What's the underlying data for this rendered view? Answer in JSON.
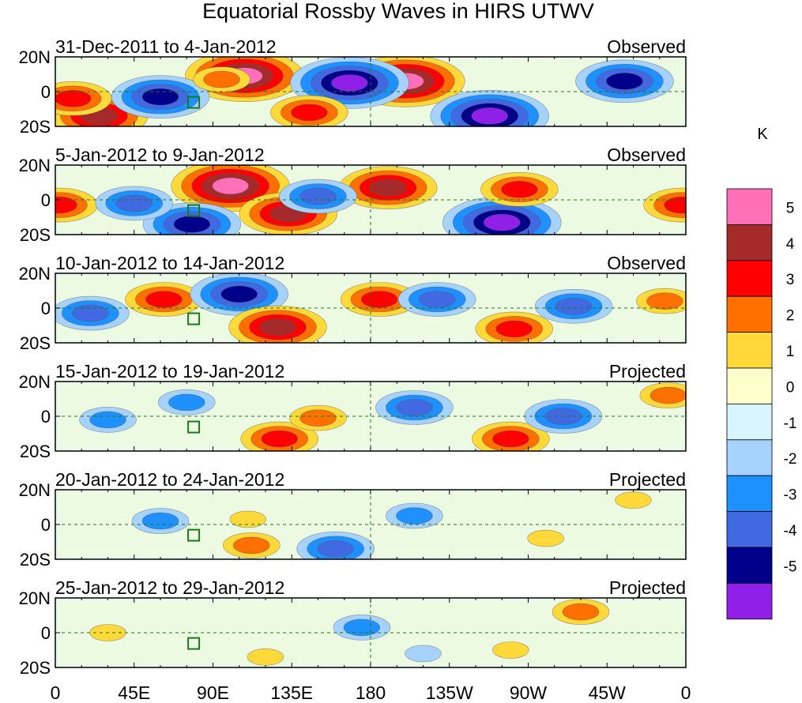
{
  "chart_data": {
    "type": "heatmap",
    "title": "Equatorial Rossby Waves in HIRS UTWV",
    "unit_label": "K",
    "x_ticks": [
      "0",
      "45E",
      "90E",
      "135E",
      "180",
      "135W",
      "90W",
      "45W",
      "0"
    ],
    "x_tick_lons": [
      0,
      45,
      90,
      135,
      180,
      225,
      270,
      315,
      360
    ],
    "lon_range": [
      0,
      360
    ],
    "lat_range": [
      -20,
      20
    ],
    "y_ticks": [
      "20N",
      "0",
      "20S"
    ],
    "y_tick_lats": [
      20,
      0,
      -20
    ],
    "reference_lines": {
      "equator_lat": 0,
      "dateline_lon": 180
    },
    "colorbar": {
      "labels": [
        "5",
        "4",
        "3",
        "2",
        "1",
        "0",
        "-1",
        "-2",
        "-3",
        "-4",
        "-5"
      ],
      "levels": [
        5,
        4,
        3,
        2,
        1,
        0,
        -1,
        -2,
        -3,
        -4,
        -5
      ],
      "colors": [
        "#ff70b8",
        "#a52a2a",
        "#ff0000",
        "#ff7000",
        "#ffd83a",
        "#ffffcc",
        "#d8f4ff",
        "#a6d2ff",
        "#1e90ff",
        "#4169e1",
        "#00008b",
        "#9020e8"
      ]
    },
    "panels": [
      {
        "date_label": "31-Dec-2011 to 4-Jan-2012",
        "status": "Observed",
        "features": [
          {
            "lon": 108,
            "lat": 9,
            "value": 5
          },
          {
            "lon": 200,
            "lat": 6,
            "value": 5
          },
          {
            "lon": 25,
            "lat": -14,
            "value": 4
          },
          {
            "lon": 168,
            "lat": 5,
            "value": -5
          },
          {
            "lon": 248,
            "lat": -14,
            "value": -5
          },
          {
            "lon": 60,
            "lat": -3,
            "value": -4
          },
          {
            "lon": 325,
            "lat": 6,
            "value": -4
          },
          {
            "lon": 145,
            "lat": -12,
            "value": 3
          },
          {
            "lon": 95,
            "lat": 7,
            "value": 2
          },
          {
            "lon": 10,
            "lat": -4,
            "value": 3
          }
        ]
      },
      {
        "date_label": "5-Jan-2012 to 9-Jan-2012",
        "status": "Observed",
        "features": [
          {
            "lon": 100,
            "lat": 8,
            "value": 5
          },
          {
            "lon": 190,
            "lat": 7,
            "value": 4
          },
          {
            "lon": 133,
            "lat": -8,
            "value": 4
          },
          {
            "lon": 2,
            "lat": -3,
            "value": 3
          },
          {
            "lon": 358,
            "lat": -3,
            "value": 3
          },
          {
            "lon": 255,
            "lat": -13,
            "value": -5
          },
          {
            "lon": 78,
            "lat": -14,
            "value": -4
          },
          {
            "lon": 45,
            "lat": -2,
            "value": -3
          },
          {
            "lon": 265,
            "lat": 6,
            "value": 3
          },
          {
            "lon": 150,
            "lat": 2,
            "value": -3
          }
        ]
      },
      {
        "date_label": "10-Jan-2012 to 14-Jan-2012",
        "status": "Observed",
        "features": [
          {
            "lon": 62,
            "lat": 5,
            "value": 3
          },
          {
            "lon": 105,
            "lat": 8,
            "value": -4
          },
          {
            "lon": 127,
            "lat": -11,
            "value": 4
          },
          {
            "lon": 185,
            "lat": 5,
            "value": 3
          },
          {
            "lon": 262,
            "lat": -12,
            "value": 3
          },
          {
            "lon": 218,
            "lat": 5,
            "value": -3
          },
          {
            "lon": 20,
            "lat": -3,
            "value": -3
          },
          {
            "lon": 296,
            "lat": 1,
            "value": -3
          },
          {
            "lon": 348,
            "lat": 4,
            "value": 2
          }
        ]
      },
      {
        "date_label": "15-Jan-2012 to 19-Jan-2012",
        "status": "Projected",
        "features": [
          {
            "lon": 128,
            "lat": -13,
            "value": 3
          },
          {
            "lon": 260,
            "lat": -13,
            "value": 3
          },
          {
            "lon": 205,
            "lat": 5,
            "value": -3
          },
          {
            "lon": 75,
            "lat": 8,
            "value": -2
          },
          {
            "lon": 150,
            "lat": -1,
            "value": 2
          },
          {
            "lon": 290,
            "lat": 0,
            "value": -3
          },
          {
            "lon": 30,
            "lat": -2,
            "value": -2
          },
          {
            "lon": 350,
            "lat": 12,
            "value": 2
          }
        ]
      },
      {
        "date_label": "20-Jan-2012 to 24-Jan-2012",
        "status": "Projected",
        "features": [
          {
            "lon": 112,
            "lat": -12,
            "value": 2
          },
          {
            "lon": 160,
            "lat": -14,
            "value": -3
          },
          {
            "lon": 205,
            "lat": 5,
            "value": -2
          },
          {
            "lon": 110,
            "lat": 3,
            "value": 1
          },
          {
            "lon": 280,
            "lat": -8,
            "value": 1
          },
          {
            "lon": 330,
            "lat": 14,
            "value": 1
          },
          {
            "lon": 60,
            "lat": 2,
            "value": -2
          }
        ]
      },
      {
        "date_label": "25-Jan-2012 to 29-Jan-2012",
        "status": "Projected",
        "features": [
          {
            "lon": 175,
            "lat": 3,
            "value": -2
          },
          {
            "lon": 300,
            "lat": 12,
            "value": 2
          },
          {
            "lon": 260,
            "lat": -10,
            "value": 1
          },
          {
            "lon": 120,
            "lat": -14,
            "value": 1
          },
          {
            "lon": 30,
            "lat": 0,
            "value": 1
          },
          {
            "lon": 210,
            "lat": -12,
            "value": -1
          }
        ]
      }
    ]
  }
}
